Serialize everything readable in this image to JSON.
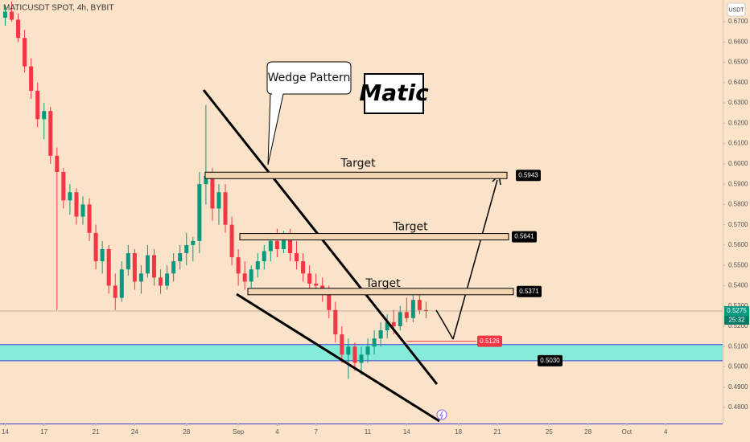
{
  "chart_data": {
    "type": "candlestick",
    "title": "MATICUSDT SPOT, 4h, BYBIT",
    "currency": "USDT",
    "annotations": {
      "wedge": "Wedge Pattern",
      "logo": "Matic"
    },
    "xlim": [
      -0.4,
      55.4
    ],
    "xticks": [
      {
        "value": 0,
        "label": "14"
      },
      {
        "value": 3,
        "label": "17"
      },
      {
        "value": 7,
        "label": "21"
      },
      {
        "value": 10,
        "label": "24"
      },
      {
        "value": 14,
        "label": "28"
      },
      {
        "value": 18,
        "label": "Sep"
      },
      {
        "value": 21,
        "label": "4"
      },
      {
        "value": 24,
        "label": "7"
      },
      {
        "value": 28,
        "label": "11"
      },
      {
        "value": 31,
        "label": "14"
      },
      {
        "value": 35,
        "label": "18"
      },
      {
        "value": 38,
        "label": "21"
      },
      {
        "value": 42,
        "label": "25"
      },
      {
        "value": 45,
        "label": "28"
      },
      {
        "value": 48,
        "label": "Oct"
      },
      {
        "value": 51,
        "label": "4"
      }
    ],
    "ylim": [
      0.4721,
      0.6807
    ],
    "yticks": [
      {
        "value": 0.48,
        "label": "0.4800"
      },
      {
        "value": 0.49,
        "label": "0.4900"
      },
      {
        "value": 0.5,
        "label": "0.5000"
      },
      {
        "value": 0.51,
        "label": "0.5100"
      },
      {
        "value": 0.52,
        "label": "0.5200"
      },
      {
        "value": 0.53,
        "label": "0.5300"
      },
      {
        "value": 0.54,
        "label": "0.5400"
      },
      {
        "value": 0.55,
        "label": "0.5500"
      },
      {
        "value": 0.56,
        "label": "0.5600"
      },
      {
        "value": 0.57,
        "label": "0.5700"
      },
      {
        "value": 0.58,
        "label": "0.5800"
      },
      {
        "value": 0.59,
        "label": "0.5900"
      },
      {
        "value": 0.6,
        "label": "0.6000"
      },
      {
        "value": 0.61,
        "label": "0.6100"
      },
      {
        "value": 0.62,
        "label": "0.6200"
      },
      {
        "value": 0.63,
        "label": "0.6300"
      },
      {
        "value": 0.64,
        "label": "0.6400"
      },
      {
        "value": 0.65,
        "label": "0.6500"
      },
      {
        "value": 0.66,
        "label": "0.6600"
      },
      {
        "value": 0.67,
        "label": "0.6700"
      }
    ],
    "grid": false,
    "up_color": "#089981",
    "down_color": "#f23645",
    "x": [
      0,
      0.5,
      1,
      1.5,
      2,
      2.5,
      3,
      3.5,
      4,
      4.5,
      5,
      5.5,
      6,
      6.5,
      7,
      7.5,
      8,
      8.5,
      9,
      9.5,
      10,
      10.5,
      11,
      11.5,
      12,
      12.5,
      13,
      13.5,
      14,
      14.5,
      15,
      15.5,
      16,
      16.5,
      17,
      17.5,
      18,
      18.5,
      19,
      19.5,
      20,
      20.5,
      21,
      21.5,
      22,
      22.5,
      23,
      23.5,
      24,
      24.5,
      25,
      25.5,
      26,
      26.5,
      27,
      27.5,
      28,
      28.5,
      29,
      29.5,
      30,
      30.5,
      31,
      31.5,
      32,
      32.5
    ],
    "open": [
      0.672,
      0.675,
      0.671,
      0.662,
      0.648,
      0.636,
      0.622,
      0.626,
      0.604,
      0.596,
      0.582,
      0.586,
      0.574,
      0.58,
      0.566,
      0.552,
      0.558,
      0.54,
      0.534,
      0.548,
      0.556,
      0.542,
      0.546,
      0.555,
      0.544,
      0.54,
      0.546,
      0.552,
      0.556,
      0.56,
      0.562,
      0.59,
      0.594,
      0.578,
      0.586,
      0.57,
      0.554,
      0.546,
      0.542,
      0.548,
      0.552,
      0.557,
      0.562,
      0.558,
      0.564,
      0.556,
      0.552,
      0.546,
      0.541,
      0.54,
      0.536,
      0.528,
      0.516,
      0.506,
      0.51,
      0.502,
      0.506,
      0.51,
      0.514,
      0.518,
      0.522,
      0.52,
      0.527,
      0.524,
      0.533,
      0.528
    ],
    "high": [
      0.678,
      0.68,
      0.674,
      0.666,
      0.652,
      0.64,
      0.63,
      0.628,
      0.608,
      0.598,
      0.59,
      0.588,
      0.584,
      0.583,
      0.57,
      0.562,
      0.56,
      0.546,
      0.552,
      0.56,
      0.558,
      0.55,
      0.56,
      0.558,
      0.548,
      0.55,
      0.556,
      0.56,
      0.566,
      0.564,
      0.596,
      0.629,
      0.598,
      0.59,
      0.59,
      0.574,
      0.558,
      0.552,
      0.55,
      0.556,
      0.56,
      0.566,
      0.568,
      0.567,
      0.568,
      0.562,
      0.556,
      0.55,
      0.546,
      0.544,
      0.54,
      0.532,
      0.52,
      0.514,
      0.512,
      0.51,
      0.514,
      0.518,
      0.522,
      0.526,
      0.528,
      0.53,
      0.534,
      0.537,
      0.536,
      0.532
    ],
    "low": [
      0.668,
      0.67,
      0.66,
      0.645,
      0.632,
      0.618,
      0.612,
      0.6,
      0.528,
      0.578,
      0.575,
      0.57,
      0.57,
      0.562,
      0.548,
      0.546,
      0.536,
      0.528,
      0.532,
      0.545,
      0.538,
      0.536,
      0.544,
      0.54,
      0.536,
      0.538,
      0.542,
      0.548,
      0.55,
      0.552,
      0.556,
      0.58,
      0.572,
      0.57,
      0.566,
      0.55,
      0.54,
      0.538,
      0.539,
      0.544,
      0.548,
      0.552,
      0.554,
      0.556,
      0.552,
      0.548,
      0.542,
      0.538,
      0.536,
      0.532,
      0.524,
      0.512,
      0.502,
      0.494,
      0.498,
      0.496,
      0.502,
      0.506,
      0.51,
      0.514,
      0.516,
      0.518,
      0.522,
      0.522,
      0.526,
      0.524
    ],
    "close": [
      0.675,
      0.671,
      0.662,
      0.648,
      0.636,
      0.622,
      0.626,
      0.604,
      0.596,
      0.582,
      0.586,
      0.574,
      0.58,
      0.566,
      0.552,
      0.558,
      0.54,
      0.534,
      0.548,
      0.556,
      0.542,
      0.546,
      0.555,
      0.544,
      0.54,
      0.546,
      0.552,
      0.556,
      0.56,
      0.562,
      0.59,
      0.594,
      0.578,
      0.586,
      0.57,
      0.554,
      0.546,
      0.542,
      0.548,
      0.552,
      0.557,
      0.562,
      0.558,
      0.564,
      0.556,
      0.552,
      0.546,
      0.541,
      0.54,
      0.536,
      0.528,
      0.516,
      0.506,
      0.51,
      0.502,
      0.506,
      0.51,
      0.514,
      0.518,
      0.522,
      0.52,
      0.527,
      0.524,
      0.533,
      0.528,
      0.5275
    ],
    "last_price": 0.5275,
    "countdown": "25:32",
    "targets": [
      {
        "name": "Target",
        "value": 0.5943
      },
      {
        "name": "Target",
        "value": 0.5641
      },
      {
        "name": "Target",
        "value": 0.5371
      }
    ],
    "stop_level": 0.5126,
    "support_zone": {
      "top": 0.511,
      "bottom": {
        "value": 0.503,
        "label": "0.5030"
      }
    }
  }
}
